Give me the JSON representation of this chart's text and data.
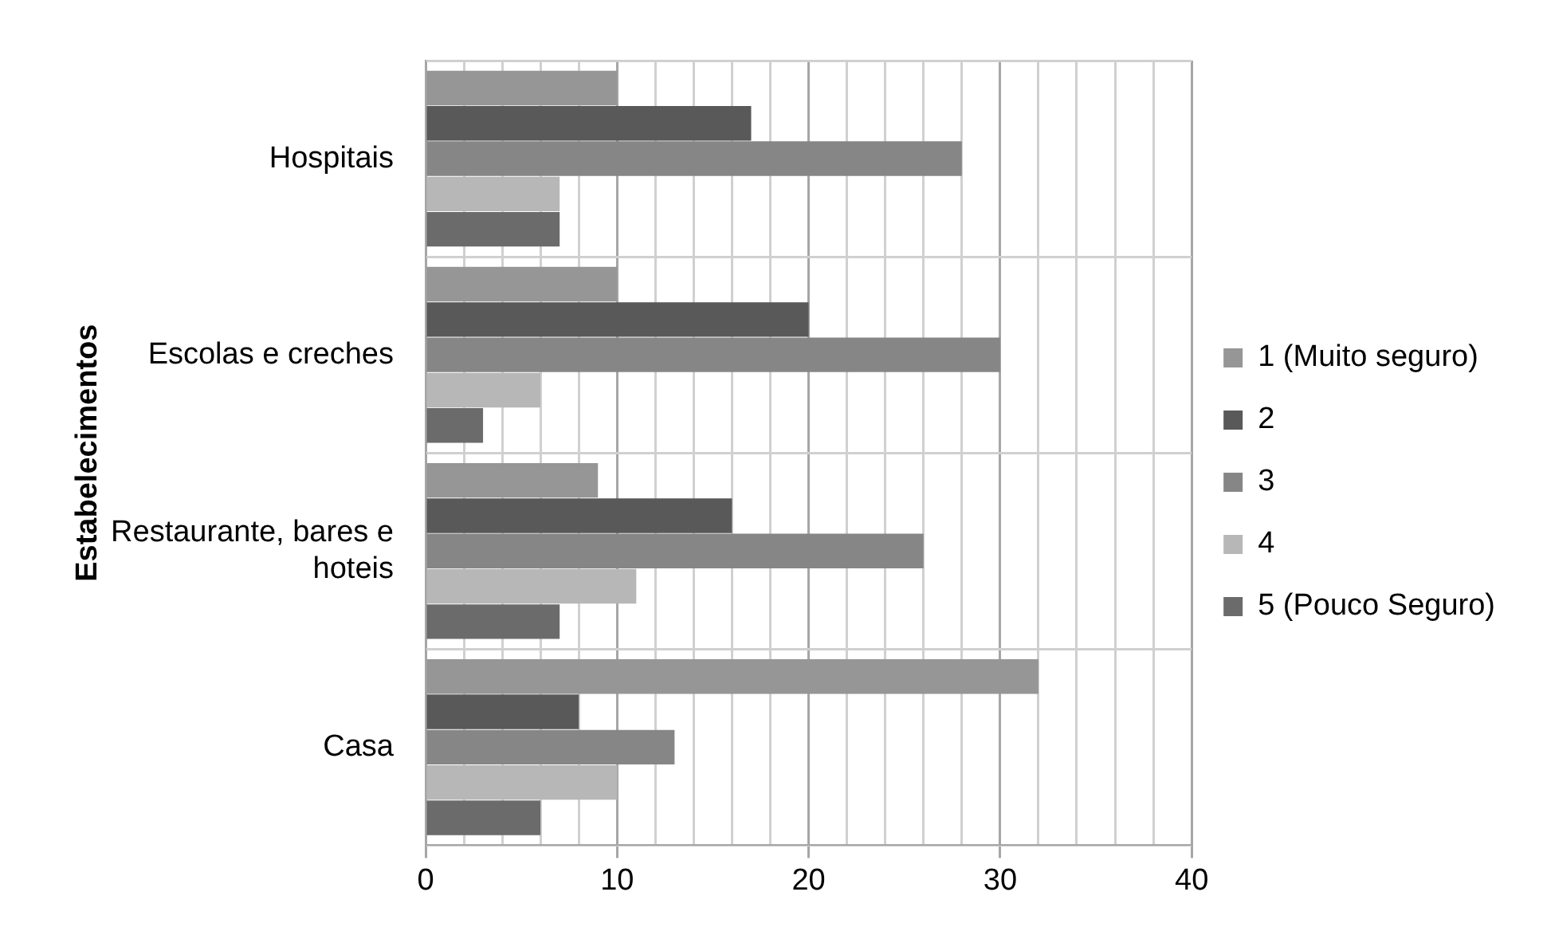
{
  "chart_data": {
    "type": "bar",
    "orientation": "horizontal",
    "ylabel": "Estabelecimentos",
    "categories": [
      "Hospitais",
      "Escolas e creches",
      "Restaurante, bares e hoteis",
      "Casa"
    ],
    "series": [
      {
        "name": "1 (Muito seguro)",
        "color": "#969696",
        "values": [
          10,
          10,
          9,
          32
        ]
      },
      {
        "name": "2",
        "color": "#595959",
        "values": [
          17,
          20,
          16,
          8
        ]
      },
      {
        "name": "3",
        "color": "#868686",
        "values": [
          28,
          30,
          26,
          13
        ]
      },
      {
        "name": "4",
        "color": "#b7b7b7",
        "values": [
          7,
          6,
          11,
          10
        ]
      },
      {
        "name": "5 (Pouco Seguro)",
        "color": "#6b6b6b",
        "values": [
          7,
          3,
          7,
          6
        ]
      }
    ],
    "xlim": [
      0,
      40
    ],
    "xticks": [
      0,
      {
        "value": 2,
        "label": null
      },
      {
        "value": 4,
        "label": null
      },
      {
        "value": 6,
        "label": null
      },
      {
        "value": 8,
        "label": null
      },
      10,
      {
        "value": 12,
        "label": null
      },
      {
        "value": 14,
        "label": null
      },
      {
        "value": 16,
        "label": null
      },
      {
        "value": 18,
        "label": null
      },
      20,
      {
        "value": 22,
        "label": null
      },
      {
        "value": 24,
        "label": null
      },
      {
        "value": 26,
        "label": null
      },
      {
        "value": 28,
        "label": null
      },
      30,
      {
        "value": 32,
        "label": null
      },
      {
        "value": 34,
        "label": null
      },
      {
        "value": 36,
        "label": null
      },
      {
        "value": 38,
        "label": null
      },
      40
    ],
    "grid": true,
    "legend": "right"
  }
}
